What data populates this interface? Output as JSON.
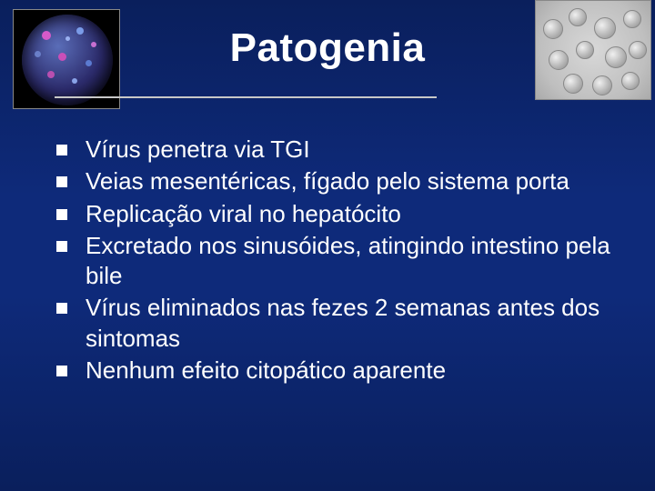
{
  "slide": {
    "title": "Patogenia",
    "title_color": "#ffffff",
    "title_fontsize": 44,
    "title_fontweight": 700,
    "background_gradient": [
      "#0a1f5c",
      "#0e2a7a",
      "#0e2a7a",
      "#0a1f5c"
    ],
    "rule_color": "#c8c8c8",
    "bullets": [
      "Vírus penetra via TGI",
      "Veias mesentéricas, fígado pelo sistema porta",
      "Replicação viral no hepatócito",
      "Excretado nos sinusóides, atingindo intestino pela bile",
      "Vírus eliminados nas fezes 2 semanas antes dos sintomas",
      "Nenhum efeito citopático aparente"
    ],
    "bullet_marker": "square",
    "bullet_marker_color": "#ffffff",
    "bullet_marker_size": 12,
    "body_fontsize": 26,
    "body_color": "#ffffff",
    "images": {
      "left": {
        "semantic": "virus-colorized-sphere",
        "bg": "#000000"
      },
      "right": {
        "semantic": "virus-em-particles",
        "bg": "#cfcfcf"
      }
    }
  }
}
